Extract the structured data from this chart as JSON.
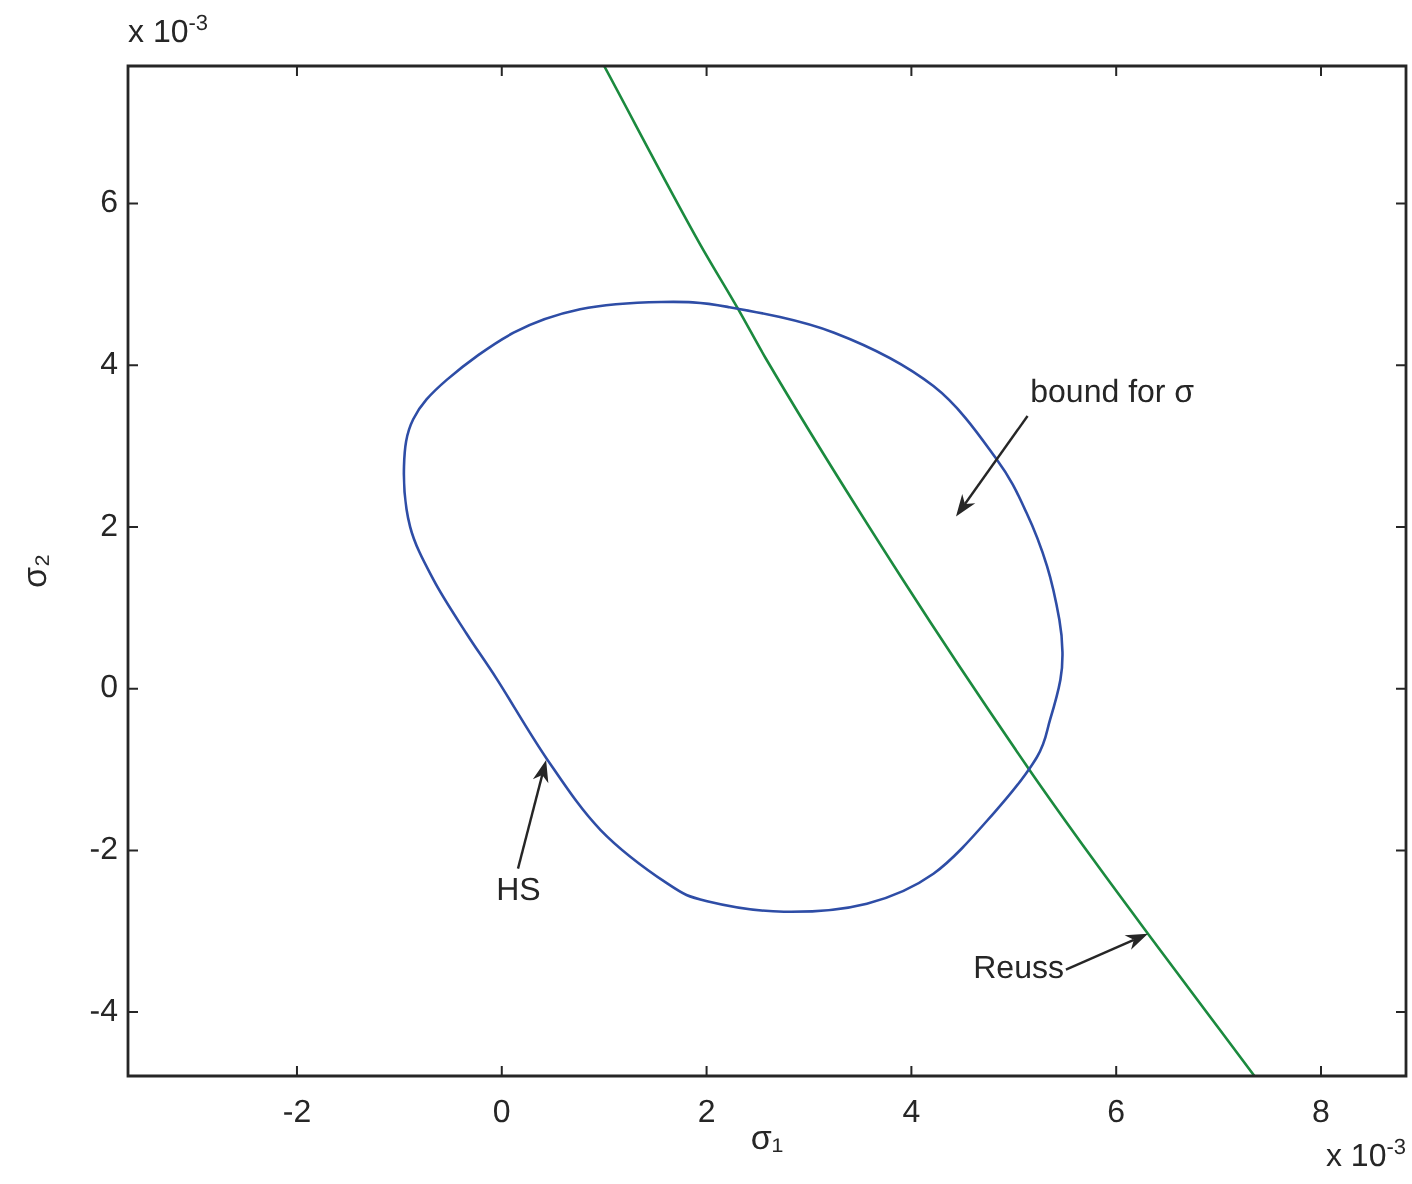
{
  "chart_data": {
    "type": "line",
    "xlabel": "σ₁",
    "ylabel": "σ₂",
    "series": [
      {
        "color": "#1b8a3e",
        "x": [
          1.0,
          1.93,
          2.31,
          2.58,
          3.92,
          5.14,
          5.78,
          6.31,
          7.35
        ],
        "values": [
          7.7,
          5.51,
          4.69,
          4.08,
          1.34,
          -0.98,
          -2.12,
          -3.03,
          -4.79
        ]
      }
    ],
    "xlim": [
      -3.65,
      8.83
    ],
    "ylim": [
      -4.79,
      7.7
    ],
    "xticks": [
      -2,
      0,
      2,
      4,
      6,
      8
    ],
    "yticks": [
      -4,
      -2,
      0,
      2,
      4,
      6
    ],
    "marker": "none",
    "line_style": "solid",
    "annotations": [
      "x 10$^{-3}$",
      "bound for σ",
      "HS",
      {
        "text": "Reuss",
        "x": 6.31,
        "y": -3.03
      },
      "x 10$^{-3}$"
    ]
  }
}
